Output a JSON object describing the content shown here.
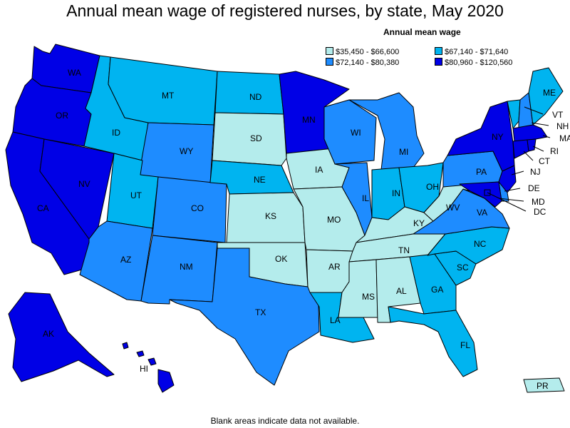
{
  "title": "Annual mean wage of registered nurses, by state, May 2020",
  "legend": {
    "title": "Annual mean wage",
    "items": [
      {
        "label": "$35,450 - $66,600",
        "color": "#b4ecec"
      },
      {
        "label": "$67,140 - $71,640",
        "color": "#00b4f0"
      },
      {
        "label": "$72,140 - $80,380",
        "color": "#1e8cff"
      },
      {
        "label": "$80,960 - $120,560",
        "color": "#0000e6"
      }
    ]
  },
  "footnote": "Blank areas indicate data not available.",
  "states": [
    {
      "abbr": "WA",
      "tier": 3
    },
    {
      "abbr": "OR",
      "tier": 3
    },
    {
      "abbr": "CA",
      "tier": 3
    },
    {
      "abbr": "NV",
      "tier": 3
    },
    {
      "abbr": "ID",
      "tier": 1
    },
    {
      "abbr": "MT",
      "tier": 1
    },
    {
      "abbr": "WY",
      "tier": 2
    },
    {
      "abbr": "UT",
      "tier": 1
    },
    {
      "abbr": "AZ",
      "tier": 2
    },
    {
      "abbr": "CO",
      "tier": 2
    },
    {
      "abbr": "NM",
      "tier": 2
    },
    {
      "abbr": "ND",
      "tier": 1
    },
    {
      "abbr": "SD",
      "tier": 0
    },
    {
      "abbr": "NE",
      "tier": 1
    },
    {
      "abbr": "KS",
      "tier": 0
    },
    {
      "abbr": "OK",
      "tier": 0
    },
    {
      "abbr": "TX",
      "tier": 2
    },
    {
      "abbr": "MN",
      "tier": 3
    },
    {
      "abbr": "IA",
      "tier": 0
    },
    {
      "abbr": "MO",
      "tier": 0
    },
    {
      "abbr": "AR",
      "tier": 0
    },
    {
      "abbr": "LA",
      "tier": 1
    },
    {
      "abbr": "WI",
      "tier": 2
    },
    {
      "abbr": "IL",
      "tier": 2
    },
    {
      "abbr": "MI",
      "tier": 2
    },
    {
      "abbr": "IN",
      "tier": 1
    },
    {
      "abbr": "OH",
      "tier": 1
    },
    {
      "abbr": "KY",
      "tier": 0
    },
    {
      "abbr": "TN",
      "tier": 0
    },
    {
      "abbr": "MS",
      "tier": 0
    },
    {
      "abbr": "AL",
      "tier": 0
    },
    {
      "abbr": "GA",
      "tier": 1
    },
    {
      "abbr": "FL",
      "tier": 1
    },
    {
      "abbr": "SC",
      "tier": 1
    },
    {
      "abbr": "NC",
      "tier": 1
    },
    {
      "abbr": "VA",
      "tier": 2
    },
    {
      "abbr": "WV",
      "tier": 0
    },
    {
      "abbr": "PA",
      "tier": 2
    },
    {
      "abbr": "NY",
      "tier": 3
    },
    {
      "abbr": "ME",
      "tier": 1
    },
    {
      "abbr": "VT",
      "tier": 1
    },
    {
      "abbr": "NH",
      "tier": 2
    },
    {
      "abbr": "MA",
      "tier": 3
    },
    {
      "abbr": "RI",
      "tier": 3
    },
    {
      "abbr": "CT",
      "tier": 3
    },
    {
      "abbr": "NJ",
      "tier": 3
    },
    {
      "abbr": "DE",
      "tier": 2
    },
    {
      "abbr": "MD",
      "tier": 3
    },
    {
      "abbr": "DC",
      "tier": 3
    },
    {
      "abbr": "AK",
      "tier": 3
    },
    {
      "abbr": "HI",
      "tier": 3
    },
    {
      "abbr": "PR",
      "tier": 0
    }
  ]
}
